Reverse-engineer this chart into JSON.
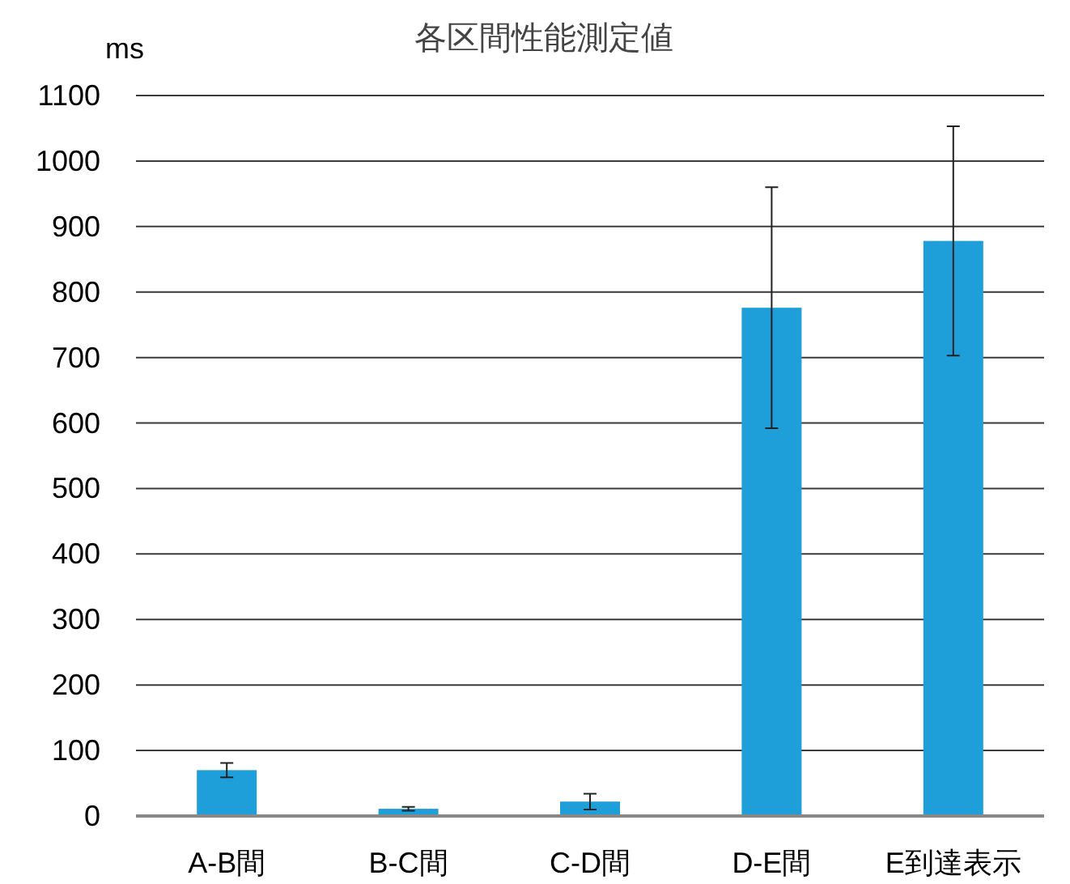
{
  "chart_data": {
    "type": "bar",
    "title": "各区間性能測定値",
    "ylabel": "ms",
    "categories": [
      "A-B間",
      "B-C間",
      "C-D間",
      "D-E間",
      "E到達表示"
    ],
    "values": [
      70,
      11,
      22,
      776,
      878
    ],
    "errors": [
      11,
      3,
      12,
      184,
      175
    ],
    "color": "#1f9fd9",
    "ylim": [
      0,
      1100
    ],
    "yticks": [
      0,
      100,
      200,
      300,
      400,
      500,
      600,
      700,
      800,
      900,
      1000,
      1100
    ],
    "grid": "y"
  }
}
